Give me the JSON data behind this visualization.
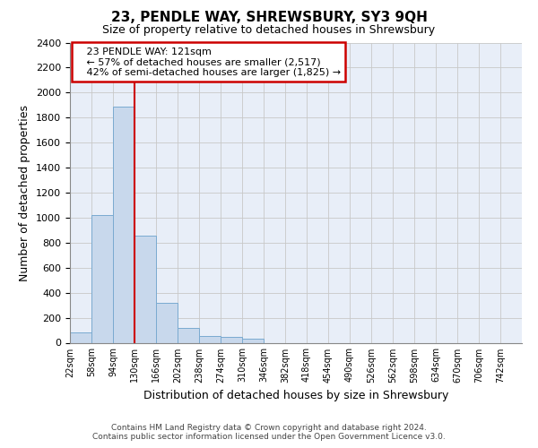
{
  "title": "23, PENDLE WAY, SHREWSBURY, SY3 9QH",
  "subtitle": "Size of property relative to detached houses in Shrewsbury",
  "xlabel": "Distribution of detached houses by size in Shrewsbury",
  "ylabel": "Number of detached properties",
  "bin_labels": [
    "22sqm",
    "58sqm",
    "94sqm",
    "130sqm",
    "166sqm",
    "202sqm",
    "238sqm",
    "274sqm",
    "310sqm",
    "346sqm",
    "382sqm",
    "418sqm",
    "454sqm",
    "490sqm",
    "526sqm",
    "562sqm",
    "598sqm",
    "634sqm",
    "670sqm",
    "706sqm",
    "742sqm"
  ],
  "bar_values": [
    85,
    1020,
    1890,
    855,
    320,
    115,
    55,
    45,
    30,
    0,
    0,
    0,
    0,
    0,
    0,
    0,
    0,
    0,
    0,
    0,
    0
  ],
  "bar_color": "#c8d8ec",
  "bar_edge_color": "#7aaad0",
  "vline_position": 3.0,
  "property_line_label": "23 PENDLE WAY: 121sqm",
  "annotation_line1": "← 57% of detached houses are smaller (2,517)",
  "annotation_line2": "42% of semi-detached houses are larger (1,825) →",
  "annotation_box_facecolor": "#ffffff",
  "annotation_box_edgecolor": "#cc0000",
  "vline_color": "#cc0000",
  "ylim": [
    0,
    2400
  ],
  "yticks": [
    0,
    200,
    400,
    600,
    800,
    1000,
    1200,
    1400,
    1600,
    1800,
    2000,
    2200,
    2400
  ],
  "grid_color": "#c8c8c8",
  "background_color": "#e8eef8",
  "footer_line1": "Contains HM Land Registry data © Crown copyright and database right 2024.",
  "footer_line2": "Contains public sector information licensed under the Open Government Licence v3.0."
}
